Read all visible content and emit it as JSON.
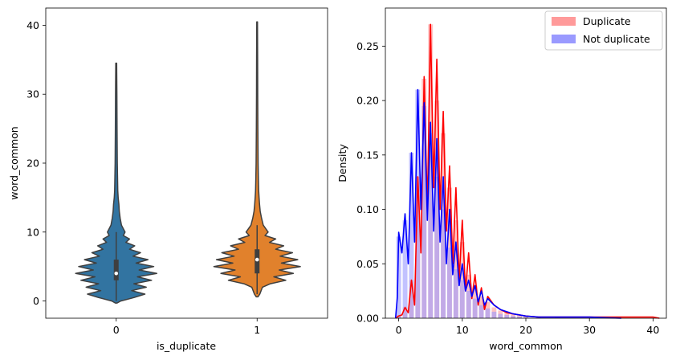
{
  "chart_data": [
    {
      "type": "violin",
      "xlabel": "is_duplicate",
      "ylabel": "word_common",
      "categories": [
        "0",
        "1"
      ],
      "ylim": [
        -2.5,
        42.5
      ],
      "yticks": [
        0,
        10,
        20,
        30,
        40
      ],
      "colors": [
        "#3274a1",
        "#e1812c"
      ],
      "violins": [
        {
          "category": "0",
          "min": -0.3,
          "max": 34.5,
          "q1": 3,
          "median": 4,
          "q3": 6,
          "whisker_low": 0,
          "whisker_high": 10,
          "profile": [
            [
              -0.3,
              0.02
            ],
            [
              0,
              0.1
            ],
            [
              0.5,
              0.4
            ],
            [
              1,
              0.65
            ],
            [
              1.5,
              0.35
            ],
            [
              2,
              0.68
            ],
            [
              2.5,
              0.4
            ],
            [
              3,
              0.8
            ],
            [
              3.5,
              0.48
            ],
            [
              4,
              0.92
            ],
            [
              4.5,
              0.52
            ],
            [
              5,
              0.85
            ],
            [
              5.5,
              0.45
            ],
            [
              6,
              0.72
            ],
            [
              6.5,
              0.38
            ],
            [
              7,
              0.55
            ],
            [
              7.5,
              0.3
            ],
            [
              8,
              0.42
            ],
            [
              8.5,
              0.22
            ],
            [
              9,
              0.3
            ],
            [
              9.5,
              0.16
            ],
            [
              10,
              0.2
            ],
            [
              11,
              0.12
            ],
            [
              12,
              0.09
            ],
            [
              13,
              0.07
            ],
            [
              14,
              0.06
            ],
            [
              15,
              0.045
            ],
            [
              16,
              0.035
            ],
            [
              18,
              0.03
            ],
            [
              20,
              0.025
            ],
            [
              25,
              0.02
            ],
            [
              30,
              0.016
            ],
            [
              34.5,
              0.01
            ]
          ]
        },
        {
          "category": "1",
          "min": 0.6,
          "max": 40.5,
          "q1": 4,
          "median": 6,
          "q3": 7.5,
          "whisker_low": 1,
          "whisker_high": 11,
          "profile": [
            [
              0.6,
              0.02
            ],
            [
              1,
              0.06
            ],
            [
              2,
              0.12
            ],
            [
              2.5,
              0.3
            ],
            [
              3,
              0.65
            ],
            [
              3.5,
              0.38
            ],
            [
              4,
              0.82
            ],
            [
              4.5,
              0.5
            ],
            [
              5,
              0.98
            ],
            [
              5.5,
              0.55
            ],
            [
              6,
              0.92
            ],
            [
              6.5,
              0.52
            ],
            [
              7,
              0.8
            ],
            [
              7.5,
              0.42
            ],
            [
              8,
              0.6
            ],
            [
              8.5,
              0.28
            ],
            [
              9,
              0.42
            ],
            [
              9.5,
              0.18
            ],
            [
              10,
              0.25
            ],
            [
              11,
              0.14
            ],
            [
              12,
              0.1
            ],
            [
              13,
              0.07
            ],
            [
              14,
              0.055
            ],
            [
              15,
              0.045
            ],
            [
              16,
              0.035
            ],
            [
              18,
              0.028
            ],
            [
              20,
              0.022
            ],
            [
              25,
              0.018
            ],
            [
              30,
              0.014
            ],
            [
              35,
              0.012
            ],
            [
              40.5,
              0.008
            ]
          ]
        }
      ]
    },
    {
      "type": "histogram_kde",
      "xlabel": "word_common",
      "ylabel": "Density",
      "xlim": [
        -2.1,
        42.1
      ],
      "ylim": [
        0,
        0.285
      ],
      "xticks": [
        0,
        10,
        20,
        30,
        40
      ],
      "yticks": [
        0.0,
        0.05,
        0.1,
        0.15,
        0.2,
        0.25
      ],
      "ytick_labels": [
        "0.00",
        "0.05",
        "0.10",
        "0.15",
        "0.20",
        "0.25"
      ],
      "legend": {
        "position": "top-right",
        "entries": [
          "Duplicate",
          "Not duplicate"
        ]
      },
      "series": [
        {
          "name": "Duplicate",
          "color": "#ff0000",
          "bar_color": "#ff9a9a",
          "bars": [
            [
              0,
              0.003
            ],
            [
              1,
              0.01
            ],
            [
              2,
              0.035
            ],
            [
              3,
              0.13
            ],
            [
              4,
              0.22
            ],
            [
              5,
              0.27
            ],
            [
              6,
              0.2
            ],
            [
              7,
              0.17
            ],
            [
              8,
              0.12
            ],
            [
              9,
              0.09
            ],
            [
              10,
              0.07
            ],
            [
              11,
              0.04
            ],
            [
              12,
              0.03
            ],
            [
              13,
              0.02
            ],
            [
              14,
              0.015
            ],
            [
              15,
              0.01
            ],
            [
              16,
              0.007
            ],
            [
              17,
              0.005
            ],
            [
              18,
              0.004
            ],
            [
              19,
              0.003
            ],
            [
              20,
              0.002
            ],
            [
              22,
              0.001
            ],
            [
              25,
              0.001
            ]
          ],
          "kde_x": [
            -0.5,
            0,
            0.5,
            1,
            1.5,
            2,
            2.5,
            3,
            3.5,
            4,
            4.5,
            5,
            5.5,
            6,
            6.5,
            7,
            7.5,
            8,
            8.5,
            9,
            9.5,
            10,
            10.5,
            11,
            11.5,
            12,
            12.5,
            13,
            13.5,
            14,
            15,
            16,
            17,
            18,
            19,
            20,
            22,
            24,
            26,
            28,
            30,
            35,
            40,
            41
          ],
          "kde_y": [
            0,
            0.002,
            0.003,
            0.01,
            0.005,
            0.035,
            0.012,
            0.13,
            0.06,
            0.222,
            0.1,
            0.27,
            0.12,
            0.238,
            0.1,
            0.19,
            0.08,
            0.14,
            0.05,
            0.12,
            0.035,
            0.09,
            0.025,
            0.06,
            0.018,
            0.04,
            0.012,
            0.028,
            0.008,
            0.02,
            0.012,
            0.008,
            0.005,
            0.004,
            0.003,
            0.002,
            0.001,
            0.001,
            0.001,
            0.001,
            0.001,
            0.001,
            0.001,
            0
          ]
        },
        {
          "name": "Not duplicate",
          "color": "#0000ff",
          "bar_color": "#9a9aff",
          "bars": [
            [
              0,
              0.075
            ],
            [
              1,
              0.09
            ],
            [
              2,
              0.152
            ],
            [
              3,
              0.21
            ],
            [
              4,
              0.195
            ],
            [
              5,
              0.17
            ],
            [
              6,
              0.13
            ],
            [
              7,
              0.1
            ],
            [
              8,
              0.065
            ],
            [
              9,
              0.045
            ],
            [
              10,
              0.035
            ],
            [
              11,
              0.025
            ],
            [
              12,
              0.018
            ],
            [
              13,
              0.012
            ],
            [
              14,
              0.009
            ],
            [
              15,
              0.006
            ],
            [
              16,
              0.004
            ],
            [
              17,
              0.003
            ],
            [
              18,
              0.002
            ],
            [
              19,
              0.0015
            ],
            [
              20,
              0.001
            ],
            [
              22,
              0.001
            ],
            [
              25,
              0.001
            ]
          ],
          "kde_x": [
            -0.5,
            -0.2,
            0,
            0.5,
            1,
            1.5,
            2,
            2.5,
            3,
            3.5,
            4,
            4.5,
            5,
            5.5,
            6,
            6.5,
            7,
            7.5,
            8,
            8.5,
            9,
            9.5,
            10,
            10.5,
            11,
            11.5,
            12,
            12.5,
            13,
            13.5,
            14,
            15,
            16,
            17,
            18,
            19,
            20,
            22,
            24,
            26,
            28,
            30,
            35
          ],
          "kde_y": [
            0,
            0.02,
            0.079,
            0.06,
            0.096,
            0.05,
            0.152,
            0.07,
            0.21,
            0.1,
            0.198,
            0.09,
            0.18,
            0.08,
            0.165,
            0.07,
            0.13,
            0.05,
            0.1,
            0.04,
            0.07,
            0.03,
            0.05,
            0.025,
            0.035,
            0.02,
            0.03,
            0.015,
            0.025,
            0.012,
            0.018,
            0.012,
            0.008,
            0.006,
            0.004,
            0.003,
            0.002,
            0.001,
            0.001,
            0.001,
            0.001,
            0.001,
            0
          ]
        }
      ]
    }
  ]
}
